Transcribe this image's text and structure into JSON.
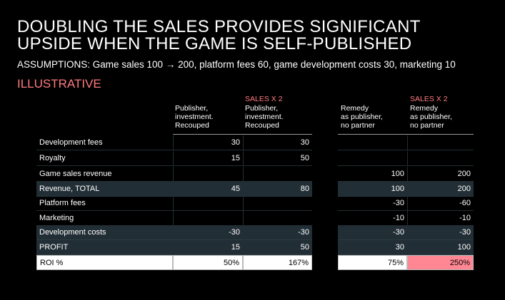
{
  "title": {
    "line1": "DOUBLING THE SALES PROVIDES SIGNIFICANT",
    "line2": "UPSIDE WHEN THE GAME IS SELF-PUBLISHED"
  },
  "assumptions": "ASSUMPTIONS: Game sales 100 → 200, platform fees 60, game development costs 30, marketing 10",
  "illustrative": "ILLUSTRATIVE",
  "colors": {
    "accent": "#ff7a7f",
    "row_shade": "#222e35",
    "roi_highlight": "#ff8793"
  },
  "table": {
    "columns": [
      {
        "tag": "",
        "lines": [
          "Publisher,",
          "investment.",
          "Recouped"
        ]
      },
      {
        "tag": "SALES X 2",
        "lines": [
          "Publisher,",
          "investment.",
          "Recouped"
        ]
      },
      {
        "tag": "",
        "lines": [
          "Remedy",
          "as publisher,",
          "no partner"
        ]
      },
      {
        "tag": "SALES X 2",
        "lines": [
          "Remedy",
          "as publisher,",
          "no partner"
        ]
      }
    ],
    "rows": [
      {
        "label": "Development fees",
        "values": [
          "30",
          "30",
          "",
          ""
        ]
      },
      {
        "label": "Royalty",
        "values": [
          "15",
          "50",
          "",
          ""
        ]
      },
      {
        "label": "Game sales revenue",
        "values": [
          "",
          "",
          "100",
          "200"
        ]
      },
      {
        "label": "Revenue, TOTAL",
        "values": [
          "45",
          "80",
          "100",
          "200"
        ]
      },
      {
        "label": "Platform fees",
        "values": [
          "",
          "",
          "-30",
          "-60"
        ]
      },
      {
        "label": "Marketing",
        "values": [
          "",
          "",
          "-10",
          "-10"
        ]
      },
      {
        "label": "Development costs",
        "values": [
          "-30",
          "-30",
          "-30",
          "-30"
        ]
      },
      {
        "label": "PROFIT",
        "values": [
          "15",
          "50",
          "30",
          "100"
        ]
      },
      {
        "label": "ROI %",
        "values": [
          "50%",
          "167%",
          "75%",
          "250%"
        ]
      }
    ]
  }
}
